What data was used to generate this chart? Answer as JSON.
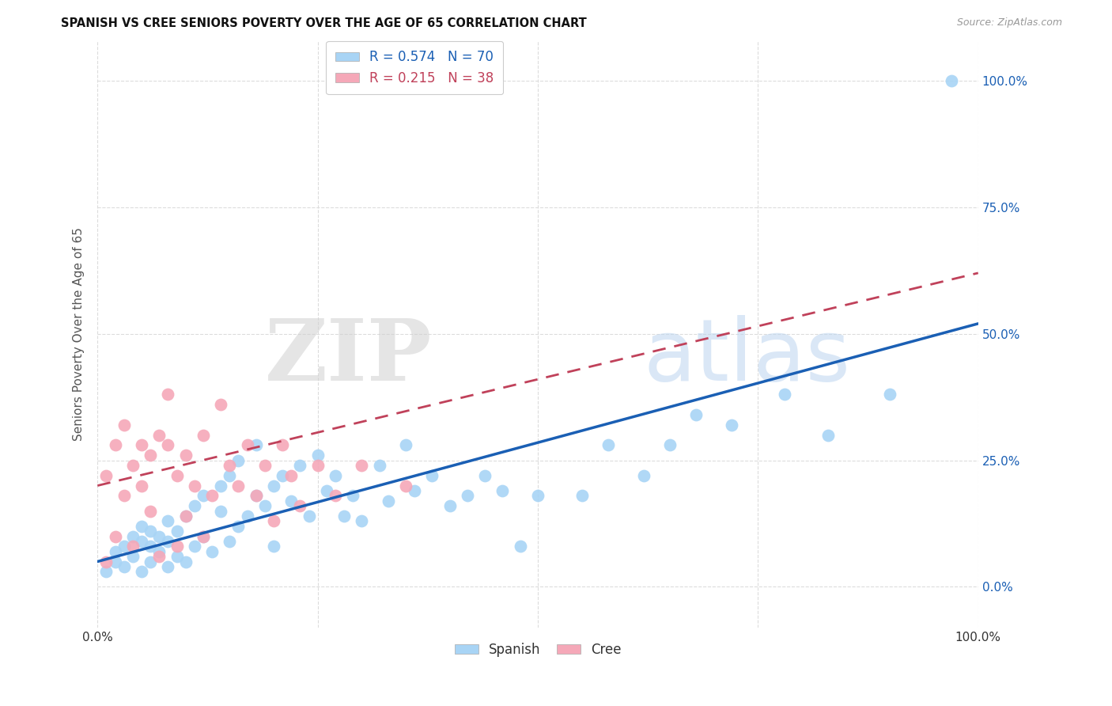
{
  "title": "SPANISH VS CREE SENIORS POVERTY OVER THE AGE OF 65 CORRELATION CHART",
  "source": "Source: ZipAtlas.com",
  "ylabel": "Seniors Poverty Over the Age of 65",
  "xlim": [
    0,
    100
  ],
  "ylim": [
    -8,
    108
  ],
  "spanish_R": 0.574,
  "spanish_N": 70,
  "cree_R": 0.215,
  "cree_N": 38,
  "spanish_color": "#A8D4F5",
  "cree_color": "#F5A8B8",
  "spanish_line_color": "#1a5fb4",
  "cree_line_color": "#c0415a",
  "background_color": "#ffffff",
  "grid_color": "#DCDCDC",
  "spanish_x": [
    1,
    2,
    2,
    3,
    3,
    4,
    4,
    5,
    5,
    5,
    6,
    6,
    6,
    7,
    7,
    8,
    8,
    8,
    9,
    9,
    10,
    10,
    11,
    11,
    12,
    12,
    13,
    14,
    14,
    15,
    15,
    16,
    16,
    17,
    18,
    18,
    19,
    20,
    20,
    21,
    22,
    23,
    24,
    25,
    26,
    27,
    28,
    29,
    30,
    32,
    33,
    35,
    36,
    38,
    40,
    42,
    44,
    46,
    48,
    50,
    55,
    58,
    62,
    65,
    68,
    72,
    78,
    83,
    90,
    97
  ],
  "spanish_y": [
    3,
    5,
    7,
    4,
    8,
    6,
    10,
    3,
    9,
    12,
    5,
    8,
    11,
    7,
    10,
    4,
    9,
    13,
    6,
    11,
    5,
    14,
    8,
    16,
    10,
    18,
    7,
    20,
    15,
    9,
    22,
    12,
    25,
    14,
    18,
    28,
    16,
    8,
    20,
    22,
    17,
    24,
    14,
    26,
    19,
    22,
    14,
    18,
    13,
    24,
    17,
    28,
    19,
    22,
    16,
    18,
    22,
    19,
    8,
    18,
    18,
    28,
    22,
    28,
    34,
    32,
    38,
    30,
    38,
    100
  ],
  "cree_x": [
    1,
    1,
    2,
    2,
    3,
    3,
    4,
    4,
    5,
    5,
    6,
    6,
    7,
    7,
    8,
    8,
    9,
    9,
    10,
    10,
    11,
    12,
    12,
    13,
    14,
    15,
    16,
    17,
    18,
    19,
    20,
    21,
    22,
    23,
    25,
    27,
    30,
    35
  ],
  "cree_y": [
    5,
    22,
    10,
    28,
    18,
    32,
    24,
    8,
    20,
    28,
    15,
    26,
    30,
    6,
    28,
    38,
    22,
    8,
    14,
    26,
    20,
    30,
    10,
    18,
    36,
    24,
    20,
    28,
    18,
    24,
    13,
    28,
    22,
    16,
    24,
    18,
    24,
    20
  ],
  "spanish_trend_x0": 0,
  "spanish_trend_y0": 5.0,
  "spanish_trend_x1": 100,
  "spanish_trend_y1": 52.0,
  "cree_trend_x0": 0,
  "cree_trend_y0": 20.0,
  "cree_trend_x1": 100,
  "cree_trend_y1": 62.0
}
